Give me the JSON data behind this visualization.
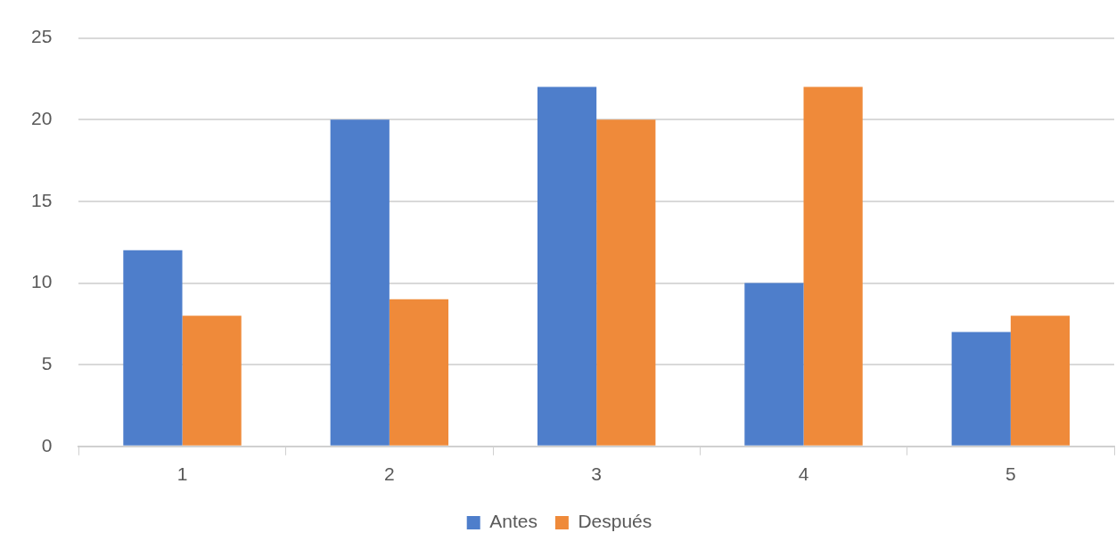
{
  "chart_data": {
    "type": "bar",
    "categories": [
      "1",
      "2",
      "3",
      "4",
      "5"
    ],
    "series": [
      {
        "name": "Antes",
        "color": "#4e7ecb",
        "values": [
          12,
          20,
          22,
          10,
          7
        ]
      },
      {
        "name": "Después",
        "color": "#ef8a3a",
        "values": [
          8,
          9,
          20,
          22,
          8
        ]
      }
    ],
    "ylim": [
      0,
      25
    ],
    "yticks": [
      0,
      5,
      10,
      15,
      20,
      25
    ],
    "grid": "y",
    "legend": "bottom"
  }
}
